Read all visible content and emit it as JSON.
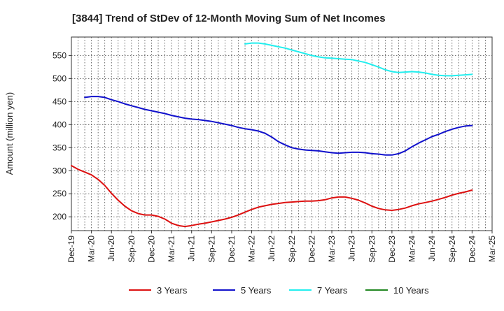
{
  "chart_data": {
    "type": "line",
    "title": "[3844]  Trend of StDev of 12-Month Moving Sum of Net Incomes",
    "ylabel": "Amount (million yen)",
    "xlabel": "",
    "ylim": [
      170,
      590
    ],
    "yticks": [
      200,
      250,
      300,
      350,
      400,
      450,
      500,
      550
    ],
    "xticks": [
      "Dec-19",
      "Mar-20",
      "Jun-20",
      "Sep-20",
      "Dec-20",
      "Mar-21",
      "Jun-21",
      "Sep-21",
      "Dec-21",
      "Mar-22",
      "Jun-22",
      "Sep-22",
      "Dec-22",
      "Mar-23",
      "Jun-23",
      "Sep-23",
      "Dec-23",
      "Mar-24",
      "Jun-24",
      "Sep-24",
      "Dec-24",
      "Mar-25"
    ],
    "grid": true,
    "legend_position": "bottom",
    "series": [
      {
        "name": "3 Years",
        "color": "#dd1111",
        "points": [
          [
            "Dec-19",
            311
          ],
          [
            "Jan-20",
            303
          ],
          [
            "Feb-20",
            297
          ],
          [
            "Mar-20",
            291
          ],
          [
            "Apr-20",
            281
          ],
          [
            "May-20",
            268
          ],
          [
            "Jun-20",
            251
          ],
          [
            "Jul-20",
            236
          ],
          [
            "Aug-20",
            223
          ],
          [
            "Sep-20",
            213
          ],
          [
            "Oct-20",
            207
          ],
          [
            "Nov-20",
            204
          ],
          [
            "Dec-20",
            204
          ],
          [
            "Jan-21",
            201
          ],
          [
            "Feb-21",
            195
          ],
          [
            "Mar-21",
            186
          ],
          [
            "Apr-21",
            181
          ],
          [
            "May-21",
            179
          ],
          [
            "Jun-21",
            181
          ],
          [
            "Jul-21",
            184
          ],
          [
            "Aug-21",
            186
          ],
          [
            "Sep-21",
            189
          ],
          [
            "Oct-21",
            192
          ],
          [
            "Nov-21",
            195
          ],
          [
            "Dec-21",
            199
          ],
          [
            "Jan-22",
            204
          ],
          [
            "Feb-22",
            210
          ],
          [
            "Mar-22",
            216
          ],
          [
            "Apr-22",
            221
          ],
          [
            "May-22",
            224
          ],
          [
            "Jun-22",
            227
          ],
          [
            "Jul-22",
            229
          ],
          [
            "Aug-22",
            231
          ],
          [
            "Sep-22",
            232
          ],
          [
            "Oct-22",
            233
          ],
          [
            "Nov-22",
            234
          ],
          [
            "Dec-22",
            234
          ],
          [
            "Jan-23",
            235
          ],
          [
            "Feb-23",
            237
          ],
          [
            "Mar-23",
            241
          ],
          [
            "Apr-23",
            243
          ],
          [
            "May-23",
            243
          ],
          [
            "Jun-23",
            240
          ],
          [
            "Jul-23",
            236
          ],
          [
            "Aug-23",
            230
          ],
          [
            "Sep-23",
            223
          ],
          [
            "Oct-23",
            218
          ],
          [
            "Nov-23",
            215
          ],
          [
            "Dec-23",
            214
          ],
          [
            "Jan-24",
            216
          ],
          [
            "Feb-24",
            219
          ],
          [
            "Mar-24",
            224
          ],
          [
            "Apr-24",
            228
          ],
          [
            "May-24",
            231
          ],
          [
            "Jun-24",
            234
          ],
          [
            "Jul-24",
            238
          ],
          [
            "Aug-24",
            242
          ],
          [
            "Sep-24",
            247
          ],
          [
            "Oct-24",
            251
          ],
          [
            "Nov-24",
            254
          ],
          [
            "Dec-24",
            258
          ]
        ]
      },
      {
        "name": "5 Years",
        "color": "#1111cc",
        "points": [
          [
            "Feb-20",
            459
          ],
          [
            "Mar-20",
            461
          ],
          [
            "Apr-20",
            461
          ],
          [
            "May-20",
            459
          ],
          [
            "Jun-20",
            454
          ],
          [
            "Jul-20",
            450
          ],
          [
            "Aug-20",
            445
          ],
          [
            "Sep-20",
            441
          ],
          [
            "Oct-20",
            437
          ],
          [
            "Nov-20",
            433
          ],
          [
            "Dec-20",
            430
          ],
          [
            "Jan-21",
            427
          ],
          [
            "Feb-21",
            424
          ],
          [
            "Mar-21",
            420
          ],
          [
            "Apr-21",
            417
          ],
          [
            "May-21",
            414
          ],
          [
            "Jun-21",
            412
          ],
          [
            "Jul-21",
            411
          ],
          [
            "Aug-21",
            409
          ],
          [
            "Sep-21",
            407
          ],
          [
            "Oct-21",
            404
          ],
          [
            "Nov-21",
            401
          ],
          [
            "Dec-21",
            398
          ],
          [
            "Jan-22",
            394
          ],
          [
            "Feb-22",
            391
          ],
          [
            "Mar-22",
            389
          ],
          [
            "Apr-22",
            386
          ],
          [
            "May-22",
            381
          ],
          [
            "Jun-22",
            373
          ],
          [
            "Jul-22",
            363
          ],
          [
            "Aug-22",
            356
          ],
          [
            "Sep-22",
            350
          ],
          [
            "Oct-22",
            347
          ],
          [
            "Nov-22",
            345
          ],
          [
            "Dec-22",
            344
          ],
          [
            "Jan-23",
            343
          ],
          [
            "Feb-23",
            341
          ],
          [
            "Mar-23",
            339
          ],
          [
            "Apr-23",
            338
          ],
          [
            "May-23",
            339
          ],
          [
            "Jun-23",
            340
          ],
          [
            "Jul-23",
            340
          ],
          [
            "Aug-23",
            339
          ],
          [
            "Sep-23",
            337
          ],
          [
            "Oct-23",
            336
          ],
          [
            "Nov-23",
            334
          ],
          [
            "Dec-23",
            334
          ],
          [
            "Jan-24",
            337
          ],
          [
            "Feb-24",
            343
          ],
          [
            "Mar-24",
            352
          ],
          [
            "Apr-24",
            360
          ],
          [
            "May-24",
            367
          ],
          [
            "Jun-24",
            374
          ],
          [
            "Jul-24",
            379
          ],
          [
            "Aug-24",
            385
          ],
          [
            "Sep-24",
            390
          ],
          [
            "Oct-24",
            394
          ],
          [
            "Nov-24",
            397
          ],
          [
            "Dec-24",
            398
          ]
        ]
      },
      {
        "name": "7 Years",
        "color": "#22eeee",
        "points": [
          [
            "Feb-22",
            575
          ],
          [
            "Mar-22",
            577
          ],
          [
            "Apr-22",
            577
          ],
          [
            "May-22",
            575
          ],
          [
            "Jun-22",
            572
          ],
          [
            "Jul-22",
            569
          ],
          [
            "Aug-22",
            566
          ],
          [
            "Sep-22",
            562
          ],
          [
            "Oct-22",
            558
          ],
          [
            "Nov-22",
            554
          ],
          [
            "Dec-22",
            550
          ],
          [
            "Jan-23",
            547
          ],
          [
            "Feb-23",
            545
          ],
          [
            "Mar-23",
            544
          ],
          [
            "Apr-23",
            543
          ],
          [
            "May-23",
            542
          ],
          [
            "Jun-23",
            541
          ],
          [
            "Jul-23",
            538
          ],
          [
            "Aug-23",
            535
          ],
          [
            "Sep-23",
            530
          ],
          [
            "Oct-23",
            525
          ],
          [
            "Nov-23",
            519
          ],
          [
            "Dec-23",
            515
          ],
          [
            "Jan-24",
            513
          ],
          [
            "Feb-24",
            514
          ],
          [
            "Mar-24",
            515
          ],
          [
            "Apr-24",
            514
          ],
          [
            "May-24",
            512
          ],
          [
            "Jun-24",
            509
          ],
          [
            "Jul-24",
            507
          ],
          [
            "Aug-24",
            506
          ],
          [
            "Sep-24",
            506
          ],
          [
            "Oct-24",
            507
          ],
          [
            "Nov-24",
            508
          ],
          [
            "Dec-24",
            509
          ]
        ]
      },
      {
        "name": "10 Years",
        "color": "#228822",
        "points": []
      }
    ]
  }
}
